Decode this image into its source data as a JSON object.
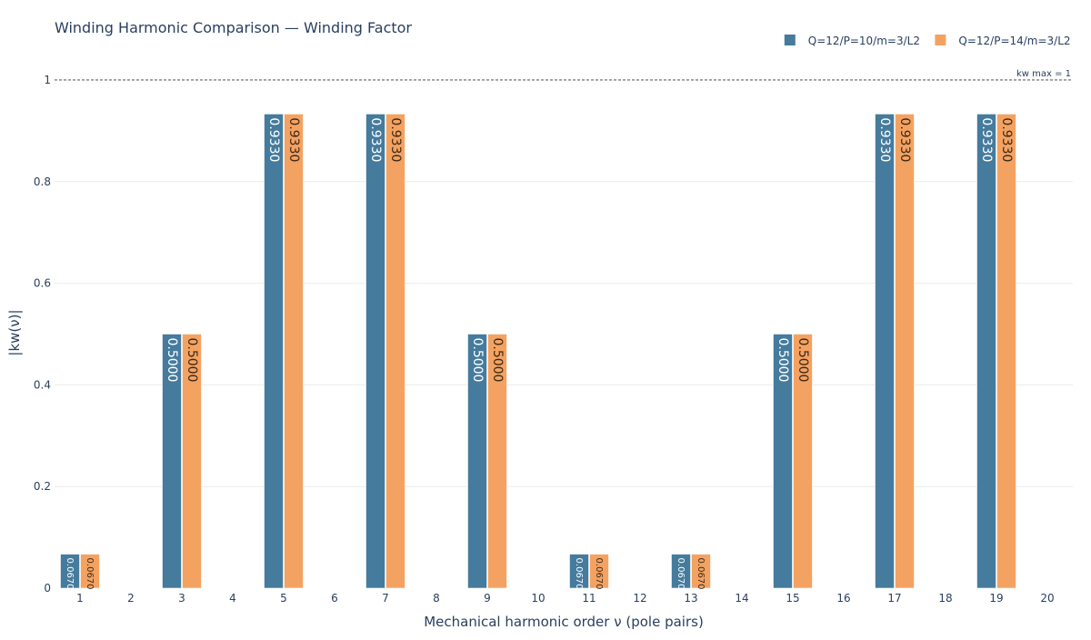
{
  "chart_data": {
    "type": "bar",
    "title": "Winding Harmonic Comparison — Winding Factor",
    "xlabel": "Mechanical harmonic order ν (pole pairs)",
    "ylabel": "|kw(ν)|",
    "ylim": [
      0,
      1.05
    ],
    "yticks": [
      0,
      0.2,
      0.4,
      0.6,
      0.8,
      1
    ],
    "ytick_labels": [
      "0",
      "0.2",
      "0.4",
      "0.6",
      "0.8",
      "1"
    ],
    "categories": [
      "1",
      "2",
      "3",
      "4",
      "5",
      "6",
      "7",
      "8",
      "9",
      "10",
      "11",
      "12",
      "13",
      "14",
      "15",
      "16",
      "17",
      "18",
      "19",
      "20"
    ],
    "series": [
      {
        "name": "Q=12/P=10/m=3/L2",
        "color": "#457b9d",
        "values": [
          0.067,
          0,
          0.5,
          0,
          0.933,
          0,
          0.933,
          0,
          0.5,
          0,
          0.067,
          0,
          0.067,
          0,
          0.5,
          0,
          0.933,
          0,
          0.933,
          0
        ],
        "labels": [
          "0.0670",
          "",
          "0.5000",
          "",
          "0.9330",
          "",
          "0.9330",
          "",
          "0.5000",
          "",
          "0.0670",
          "",
          "0.0670",
          "",
          "0.5000",
          "",
          "0.9330",
          "",
          "0.9330",
          ""
        ]
      },
      {
        "name": "Q=12/P=14/m=3/L2",
        "color": "#f4a261",
        "values": [
          0.067,
          0,
          0.5,
          0,
          0.933,
          0,
          0.933,
          0,
          0.5,
          0,
          0.067,
          0,
          0.067,
          0,
          0.5,
          0,
          0.933,
          0,
          0.933,
          0
        ],
        "labels": [
          "0.0670",
          "",
          "0.5000",
          "",
          "0.9330",
          "",
          "0.9330",
          "",
          "0.5000",
          "",
          "0.0670",
          "",
          "0.0670",
          "",
          "0.5000",
          "",
          "0.9330",
          "",
          "0.9330",
          ""
        ]
      }
    ],
    "reference_line": {
      "value": 1,
      "label": "kw max = 1",
      "style": "dotted"
    },
    "grid": true,
    "legend_position": "top-right"
  }
}
